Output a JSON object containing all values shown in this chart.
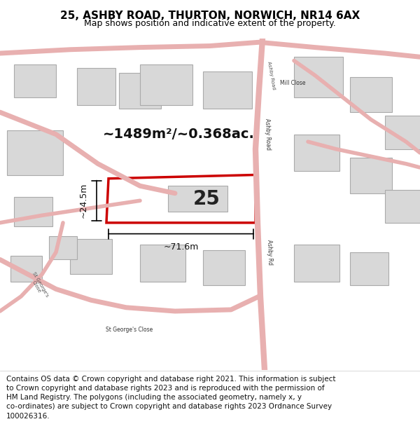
{
  "title": "25, ASHBY ROAD, THURTON, NORWICH, NR14 6AX",
  "subtitle": "Map shows position and indicative extent of the property.",
  "footer_text": "Contains OS data © Crown copyright and database right 2021. This information is subject\nto Crown copyright and database rights 2023 and is reproduced with the permission of\nHM Land Registry. The polygons (including the associated geometry, namely x, y\nco-ordinates) are subject to Crown copyright and database rights 2023 Ordnance Survey\n100026316.",
  "area_label": "~1489m²/~0.368ac.",
  "width_label": "~71.6m",
  "height_label": "~24.5m",
  "plot_number": "25",
  "bg_color": "#ffffff",
  "map_bg": "#f5f0f0",
  "road_color": "#e8b0b0",
  "building_fill": "#d8d8d8",
  "building_edge": "#aaaaaa",
  "highlight_fill": "#ffffff",
  "highlight_edge": "#cc0000",
  "title_fontsize": 11,
  "subtitle_fontsize": 9,
  "footer_fontsize": 7.5
}
